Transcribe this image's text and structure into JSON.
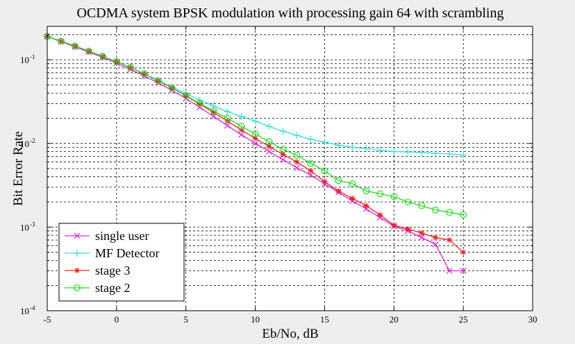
{
  "chart_data": {
    "type": "line",
    "title": "OCDMA system BPSK modulation with processing gain 64 with scrambling",
    "xlabel": "Eb/No, dB",
    "ylabel": "Bit Error Rate",
    "xlim": [
      -5,
      30
    ],
    "ylim_log10": [
      -4,
      -0.6
    ],
    "y_scale": "log",
    "x_ticks": [
      -5,
      0,
      5,
      10,
      15,
      20,
      25,
      30
    ],
    "x_tick_labels": [
      "-5",
      "0",
      "5",
      "10",
      "15",
      "20",
      "25",
      "30"
    ],
    "y_ticks": [
      {
        "exp": -4,
        "base": "10",
        "sup": "-4"
      },
      {
        "exp": -3,
        "base": "10",
        "sup": "-3"
      },
      {
        "exp": -2,
        "base": "10",
        "sup": "-2"
      },
      {
        "exp": -1,
        "base": "10",
        "sup": "-1"
      }
    ],
    "grid": "on",
    "legend_position": "bottom-left",
    "series": [
      {
        "name": "single user",
        "color": "#e020e0",
        "marker": "x",
        "x": [
          -5,
          -4,
          -3,
          -2,
          -1,
          0,
          1,
          2,
          3,
          4,
          5,
          6,
          7,
          8,
          9,
          10,
          11,
          12,
          13,
          14,
          15,
          16,
          17,
          18,
          19,
          20,
          21,
          22,
          23,
          24,
          25
        ],
        "y": [
          0.19,
          0.165,
          0.143,
          0.124,
          0.107,
          0.091,
          0.077,
          0.064,
          0.053,
          0.043,
          0.0345,
          0.027,
          0.021,
          0.0163,
          0.0127,
          0.01,
          0.008,
          0.0064,
          0.0051,
          0.0042,
          0.0033,
          0.0026,
          0.00205,
          0.00165,
          0.0013,
          0.00102,
          0.0009,
          0.00075,
          0.00062,
          0.0003,
          0.0003
        ]
      },
      {
        "name": "MF Detector",
        "color": "#30e0e0",
        "marker": "+",
        "x": [
          -5,
          -4,
          -3,
          -2,
          -1,
          0,
          1,
          2,
          3,
          4,
          5,
          6,
          7,
          8,
          9,
          10,
          11,
          12,
          13,
          14,
          15,
          16,
          17,
          18,
          19,
          20,
          21,
          22,
          23,
          24,
          25
        ],
        "y": [
          0.19,
          0.167,
          0.146,
          0.127,
          0.11,
          0.095,
          0.081,
          0.068,
          0.057,
          0.047,
          0.0395,
          0.033,
          0.028,
          0.024,
          0.021,
          0.0185,
          0.016,
          0.014,
          0.0125,
          0.0112,
          0.0104,
          0.0095,
          0.009,
          0.0087,
          0.0083,
          0.008,
          0.0079,
          0.0078,
          0.0076,
          0.0075,
          0.0073
        ]
      },
      {
        "name": "stage 3",
        "color": "#ee2020",
        "marker": "*",
        "x": [
          -5,
          -4,
          -3,
          -2,
          -1,
          0,
          1,
          2,
          3,
          4,
          5,
          6,
          7,
          8,
          9,
          10,
          11,
          12,
          13,
          14,
          15,
          16,
          17,
          18,
          19,
          20,
          21,
          22,
          23,
          24,
          25
        ],
        "y": [
          0.19,
          0.167,
          0.146,
          0.127,
          0.11,
          0.095,
          0.081,
          0.068,
          0.056,
          0.046,
          0.037,
          0.0295,
          0.0235,
          0.0185,
          0.0145,
          0.0115,
          0.0092,
          0.0074,
          0.006,
          0.0047,
          0.0035,
          0.0027,
          0.0022,
          0.0018,
          0.0014,
          0.00105,
          0.00095,
          0.00085,
          0.00075,
          0.0007,
          0.0005
        ]
      },
      {
        "name": "stage 2",
        "color": "#20dd20",
        "marker": "o",
        "x": [
          -5,
          -4,
          -3,
          -2,
          -1,
          0,
          1,
          2,
          3,
          4,
          5,
          6,
          7,
          8,
          9,
          10,
          11,
          12,
          13,
          14,
          15,
          16,
          17,
          18,
          19,
          20,
          21,
          22,
          23,
          24,
          25
        ],
        "y": [
          0.19,
          0.167,
          0.146,
          0.127,
          0.11,
          0.095,
          0.081,
          0.068,
          0.056,
          0.046,
          0.0375,
          0.03,
          0.0245,
          0.02,
          0.016,
          0.013,
          0.0105,
          0.0085,
          0.0072,
          0.0058,
          0.0047,
          0.0036,
          0.0033,
          0.0027,
          0.0025,
          0.0023,
          0.002,
          0.0018,
          0.0016,
          0.0015,
          0.0014
        ]
      }
    ]
  }
}
